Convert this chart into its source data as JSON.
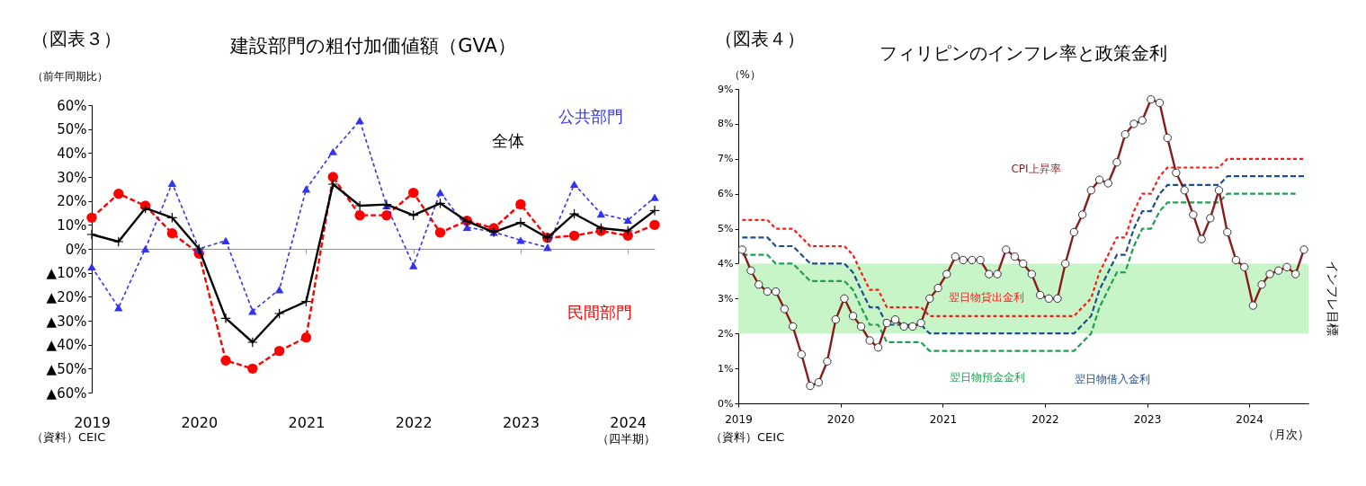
{
  "chart_data": [
    {
      "type": "line",
      "title": "建設部門の粗付加価値額（GVA）",
      "ylabel": "（前年同期比）",
      "xlabel": "（四半期）",
      "annotations": [
        "（図表３）",
        "（資料）CEIC"
      ],
      "categories": [
        "2019",
        null,
        null,
        null,
        "2020",
        null,
        null,
        null,
        "2021",
        null,
        null,
        null,
        "2022",
        null,
        null,
        null,
        "2023",
        null,
        null,
        null,
        "2024",
        null
      ],
      "series": [
        {
          "name": "民間部門",
          "color": "#ff0000",
          "marker": "circle",
          "line_style": "dashed",
          "values": [
            13,
            23,
            18,
            6.5,
            -2,
            -46.6,
            -50,
            -42.6,
            -37,
            30,
            14,
            14,
            23.4,
            6.8,
            11.7,
            8.6,
            18.6,
            4.6,
            5.5,
            7.5,
            5.5,
            10
          ]
        },
        {
          "name": "公共部門",
          "color": "#3333ee",
          "marker": "triangle",
          "line_style": "dotted",
          "values": [
            -7.5,
            -24.5,
            0,
            27.4,
            0,
            3.4,
            -26,
            -17,
            25,
            40.6,
            53.6,
            18,
            -7,
            23.6,
            9,
            7,
            3.6,
            0.6,
            27,
            14.6,
            12,
            21.5
          ]
        },
        {
          "name": "全体",
          "color": "#000000",
          "marker": "cross",
          "line_style": "solid",
          "values": [
            6,
            3,
            17,
            13,
            0,
            -29,
            -39,
            -27,
            -22,
            27,
            18,
            18.5,
            14,
            19,
            11.5,
            7,
            11,
            4.6,
            14.6,
            8.6,
            7.5,
            16
          ]
        }
      ],
      "ylim": [
        -60,
        60
      ],
      "yticks": [
        {
          "value": -60,
          "label": "▲60%"
        },
        {
          "value": -50,
          "label": "▲50%"
        },
        {
          "value": -40,
          "label": "▲40%"
        },
        {
          "value": -30,
          "label": "▲30%"
        },
        {
          "value": -20,
          "label": "▲20%"
        },
        {
          "value": -10,
          "label": "▲10%"
        },
        {
          "value": 0,
          "label": "0%"
        },
        {
          "value": 10,
          "label": "10%"
        },
        {
          "value": 20,
          "label": "20%"
        },
        {
          "value": 30,
          "label": "30%"
        },
        {
          "value": 40,
          "label": "40%"
        },
        {
          "value": 50,
          "label": "50%"
        },
        {
          "value": 60,
          "label": "60%"
        }
      ]
    },
    {
      "type": "line",
      "title": "フィリピンのインフレ率と政策金利",
      "ylabel": "（%）",
      "xlabel": "（月次）",
      "annotations": [
        "（図表４）",
        "（資料）CEIC"
      ],
      "x": [
        "2019-01-15",
        "2019-02-15",
        "2019-03-15",
        "2019-04-15",
        "2019-05-15",
        "2019-06-15",
        "2019-07-15",
        "2019-08-15",
        "2019-09-15",
        "2019-10-15",
        "2019-11-15",
        "2019-12-15",
        "2020-01-15",
        "2020-02-15",
        "2020-03-15",
        "2020-04-15",
        "2020-05-15",
        "2020-06-15",
        "2020-07-15",
        "2020-08-15",
        "2020-09-15",
        "2020-10-15",
        "2020-11-15",
        "2020-12-15",
        "2021-01-15",
        "2021-02-15",
        "2021-03-15",
        "2021-04-15",
        "2021-05-15",
        "2021-06-15",
        "2021-07-15",
        "2021-08-15",
        "2021-09-15",
        "2021-10-15",
        "2021-11-15",
        "2021-12-15",
        "2022-01-15",
        "2022-02-15",
        "2022-03-15",
        "2022-04-15",
        "2022-05-15",
        "2022-06-15",
        "2022-07-15",
        "2022-08-15",
        "2022-09-15",
        "2022-10-15",
        "2022-11-15",
        "2022-12-15",
        "2023-01-15",
        "2023-02-15",
        "2023-03-15",
        "2023-04-15",
        "2023-05-15",
        "2023-06-15",
        "2023-07-15",
        "2023-08-15",
        "2023-09-15",
        "2023-10-15",
        "2023-11-15",
        "2023-12-15",
        "2024-01-15",
        "2024-02-15",
        "2024-03-15",
        "2024-04-15",
        "2024-05-15",
        "2024-06-15",
        "2024-07-15"
      ],
      "series": [
        {
          "name": "翌日物貸出金利",
          "color": "#ff1a1a",
          "marker": "none",
          "line_style": "dotted",
          "values": [
            5.25,
            5.25,
            5.25,
            5.25,
            5.0,
            5.0,
            5.0,
            4.75,
            4.5,
            4.5,
            4.5,
            4.5,
            4.5,
            4.25,
            3.75,
            3.25,
            3.25,
            2.75,
            2.75,
            2.75,
            2.75,
            2.75,
            2.5,
            2.5,
            2.5,
            2.5,
            2.5,
            2.5,
            2.5,
            2.5,
            2.5,
            2.5,
            2.5,
            2.5,
            2.5,
            2.5,
            2.5,
            2.5,
            2.5,
            2.5,
            2.75,
            3.0,
            3.75,
            4.25,
            4.75,
            4.75,
            5.5,
            6.0,
            6.0,
            6.5,
            6.75,
            6.75,
            6.75,
            6.75,
            6.75,
            6.75,
            6.75,
            7.0,
            7.0,
            7.0,
            7.0,
            7.0,
            7.0,
            7.0,
            7.0,
            7.0,
            7.0
          ]
        },
        {
          "name": "翌日物借入金利",
          "color": "#1f4e8c",
          "marker": "none",
          "line_style": "dashed",
          "values": [
            4.75,
            4.75,
            4.75,
            4.75,
            4.5,
            4.5,
            4.5,
            4.25,
            4.0,
            4.0,
            4.0,
            4.0,
            4.0,
            3.75,
            3.25,
            2.75,
            2.75,
            2.25,
            2.25,
            2.25,
            2.25,
            2.25,
            2.0,
            2.0,
            2.0,
            2.0,
            2.0,
            2.0,
            2.0,
            2.0,
            2.0,
            2.0,
            2.0,
            2.0,
            2.0,
            2.0,
            2.0,
            2.0,
            2.0,
            2.0,
            2.25,
            2.5,
            3.25,
            3.75,
            4.25,
            4.25,
            5.0,
            5.5,
            5.5,
            6.0,
            6.25,
            6.25,
            6.25,
            6.25,
            6.25,
            6.25,
            6.25,
            6.5,
            6.5,
            6.5,
            6.5,
            6.5,
            6.5,
            6.5,
            6.5,
            6.5,
            6.5
          ]
        },
        {
          "name": "翌日物預金金利",
          "color": "#1fa050",
          "marker": "none",
          "line_style": "dashed",
          "values": [
            4.25,
            4.25,
            4.25,
            4.25,
            4.0,
            4.0,
            4.0,
            3.75,
            3.5,
            3.5,
            3.5,
            3.5,
            3.5,
            3.25,
            2.75,
            2.25,
            2.25,
            1.75,
            1.75,
            1.75,
            1.75,
            1.75,
            1.5,
            1.5,
            1.5,
            1.5,
            1.5,
            1.5,
            1.5,
            1.5,
            1.5,
            1.5,
            1.5,
            1.5,
            1.5,
            1.5,
            1.5,
            1.5,
            1.5,
            1.5,
            1.75,
            2.0,
            2.75,
            3.25,
            3.75,
            3.75,
            4.5,
            5.0,
            5.0,
            5.5,
            5.75,
            5.75,
            5.75,
            5.75,
            5.75,
            5.75,
            5.75,
            6.0,
            6.0,
            6.0,
            6.0,
            6.0,
            6.0,
            6.0,
            6.0,
            6.0,
            null
          ]
        },
        {
          "name": "CPI上昇率",
          "color": "#8b1a1a",
          "marker": "circle",
          "line_style": "solid",
          "values": [
            4.4,
            3.8,
            3.4,
            3.2,
            3.2,
            2.7,
            2.2,
            1.4,
            0.5,
            0.6,
            1.2,
            2.4,
            3.0,
            2.5,
            2.2,
            1.8,
            1.6,
            2.3,
            2.4,
            2.2,
            2.2,
            2.3,
            3.0,
            3.3,
            3.7,
            4.2,
            4.1,
            4.1,
            4.1,
            3.7,
            3.7,
            4.4,
            4.2,
            4.0,
            3.7,
            3.1,
            3.0,
            3.0,
            4.0,
            4.9,
            5.4,
            6.1,
            6.4,
            6.3,
            6.9,
            7.7,
            8.0,
            8.1,
            8.7,
            8.6,
            7.6,
            6.6,
            6.1,
            5.4,
            4.7,
            5.3,
            6.1,
            4.9,
            4.1,
            3.9,
            2.8,
            3.4,
            3.7,
            3.8,
            3.9,
            3.7,
            4.4
          ]
        }
      ],
      "xlim": [
        "2019-01-01",
        "2024-07-31"
      ],
      "xticks": [
        "2019",
        "2020",
        "2021",
        "2022",
        "2023",
        "2024"
      ],
      "ylim": [
        0,
        9
      ],
      "yticks": [
        {
          "value": 0,
          "label": "0%"
        },
        {
          "value": 1,
          "label": "1%"
        },
        {
          "value": 2,
          "label": "2%"
        },
        {
          "value": 3,
          "label": "3%"
        },
        {
          "value": 4,
          "label": "4%"
        },
        {
          "value": 5,
          "label": "5%"
        },
        {
          "value": 6,
          "label": "6%"
        },
        {
          "value": 7,
          "label": "7%"
        },
        {
          "value": 8,
          "label": "8%"
        },
        {
          "value": 9,
          "label": "9%"
        }
      ],
      "bands": [
        {
          "axis": "y",
          "from": 2,
          "to": 4,
          "label": "インフレ目標",
          "color": "#c8f5c8"
        }
      ]
    }
  ]
}
